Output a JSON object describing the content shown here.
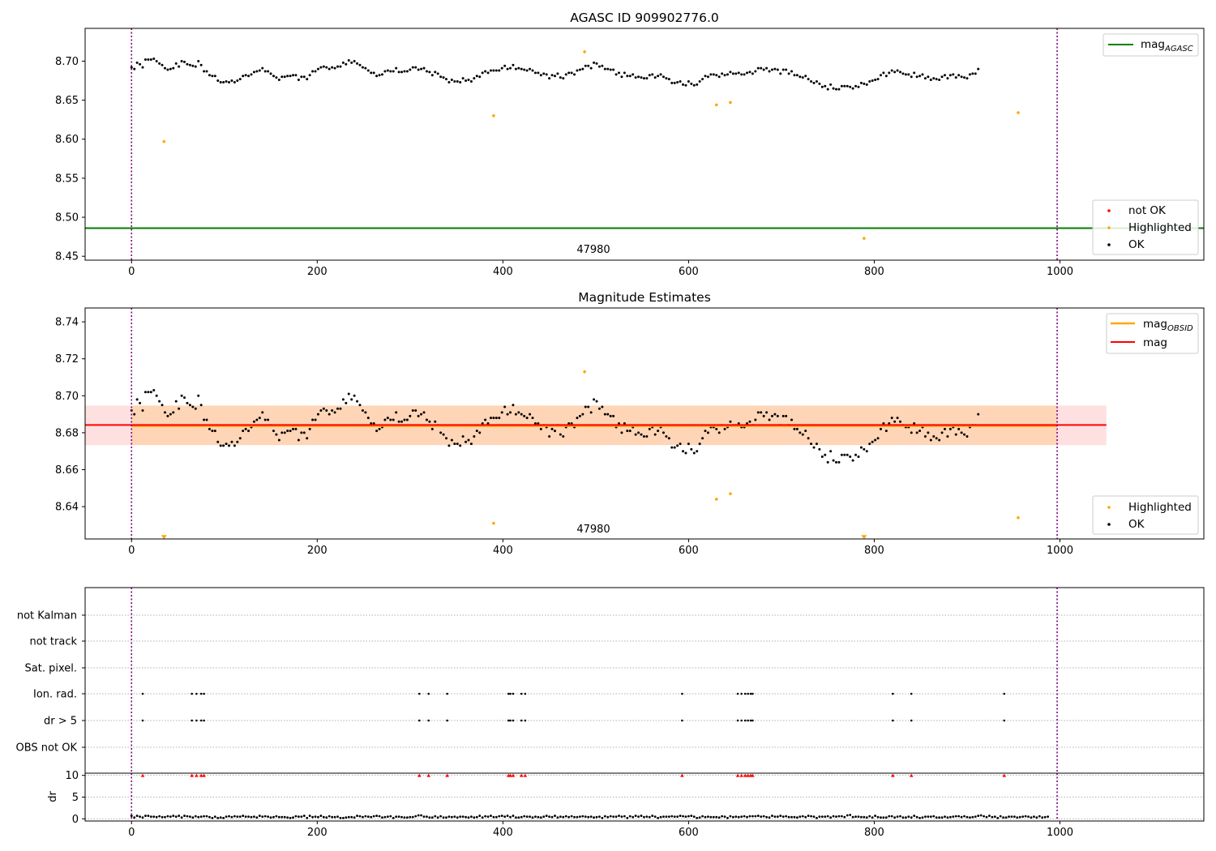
{
  "chart_data": [
    {
      "type": "scatter",
      "panel": "agasc",
      "title": "AGASC ID 909902776.0",
      "xlim": [
        -50,
        1155
      ],
      "ylim": [
        8.445,
        8.742
      ],
      "xticks": [
        0,
        200,
        400,
        600,
        800,
        1000
      ],
      "yticks": [
        8.45,
        8.5,
        8.55,
        8.6,
        8.65,
        8.7
      ],
      "obsid_label": "47980",
      "obsid_label_x": 500,
      "obs_boundaries_x": [
        0,
        997
      ],
      "lines": [
        {
          "name": "mag_AGASC",
          "legend_main": "mag",
          "legend_sub": "AGASC",
          "y": 8.486,
          "x_range": [
            -50,
            1155
          ],
          "color": "#008000"
        }
      ],
      "legends": [
        {
          "position": "upper-right",
          "entries": [
            {
              "label": "mag",
              "sub": "AGASC",
              "kind": "line",
              "color": "#008000"
            }
          ]
        },
        {
          "position": "lower-right",
          "entries": [
            {
              "label": "not OK",
              "kind": "dot",
              "color": "#ff0000"
            },
            {
              "label": "Highlighted",
              "kind": "dot",
              "color": "#ffa500"
            },
            {
              "label": "OK",
              "kind": "dot",
              "color": "#000000"
            }
          ]
        }
      ],
      "highlighted_points": [
        {
          "x": 35,
          "y": 8.597
        },
        {
          "x": 390,
          "y": 8.63
        },
        {
          "x": 488,
          "y": 8.712
        },
        {
          "x": 630,
          "y": 8.644
        },
        {
          "x": 645,
          "y": 8.647
        },
        {
          "x": 789,
          "y": 8.473
        },
        {
          "x": 955,
          "y": 8.634
        }
      ],
      "ok_series": {
        "name": "OK",
        "color": "#000000",
        "x_start": 0,
        "x_step": 3,
        "y": [
          8.692,
          8.69,
          8.698,
          8.696,
          8.692,
          8.702,
          8.702,
          8.702,
          8.703,
          8.7,
          8.697,
          8.695,
          8.691,
          8.689,
          8.69,
          8.691,
          8.697,
          8.693,
          8.7,
          8.699,
          8.696,
          8.695,
          8.694,
          8.693,
          8.7,
          8.695,
          8.687,
          8.687,
          8.682,
          8.681,
          8.681,
          8.675,
          8.673,
          8.673,
          8.674,
          8.673,
          8.675,
          8.673,
          8.675,
          8.677,
          8.681,
          8.682,
          8.681,
          8.683,
          8.686,
          8.687,
          8.688,
          8.691,
          8.687,
          8.687,
          8.684,
          8.681,
          8.679,
          8.676,
          8.68,
          8.68,
          8.681,
          8.681,
          8.682,
          8.682,
          8.676,
          8.68,
          8.68,
          8.677,
          8.682,
          8.687,
          8.687,
          8.69,
          8.692,
          8.693,
          8.692,
          8.69,
          8.692,
          8.691,
          8.693,
          8.693,
          8.698,
          8.696,
          8.701,
          8.698,
          8.7,
          8.697,
          8.695,
          8.692,
          8.691,
          8.688,
          8.685,
          8.685,
          8.681,
          8.682,
          8.683,
          8.687,
          8.688,
          8.687,
          8.687,
          8.691,
          8.686,
          8.686,
          8.687,
          8.687,
          8.689,
          8.692,
          8.692,
          8.689,
          8.69,
          8.691,
          8.687,
          8.686,
          8.682,
          8.686,
          8.684,
          8.68,
          8.679,
          8.677,
          8.673,
          8.676,
          8.674,
          8.674,
          8.673,
          8.678,
          8.675,
          8.676,
          8.674,
          8.678,
          8.681,
          8.68,
          8.685,
          8.687,
          8.685,
          8.688,
          8.688,
          8.688,
          8.688,
          8.691,
          8.694,
          8.69,
          8.691,
          8.695,
          8.69,
          8.691,
          8.69,
          8.689,
          8.688,
          8.69,
          8.688,
          8.685,
          8.685,
          8.682,
          8.684,
          8.683,
          8.678,
          8.682,
          8.681,
          8.684,
          8.679,
          8.678,
          8.683,
          8.685,
          8.685,
          8.683,
          8.688,
          8.689,
          8.69,
          8.694,
          8.694,
          8.691,
          8.698,
          8.697,
          8.693,
          8.694,
          8.69,
          8.69,
          8.689,
          8.689,
          8.683,
          8.685,
          8.68,
          8.685,
          8.681,
          8.681,
          8.683,
          8.679,
          8.68,
          8.679,
          8.678,
          8.678,
          8.682,
          8.683,
          8.679,
          8.681,
          8.683,
          8.68,
          8.678,
          8.677,
          8.672,
          8.672,
          8.673,
          8.674,
          8.67,
          8.669,
          8.674,
          8.671,
          8.669,
          8.67,
          8.674,
          8.677,
          8.681,
          8.68,
          8.683,
          8.683,
          8.682,
          8.68,
          8.684,
          8.682,
          8.683,
          8.686,
          8.684,
          8.684,
          8.685,
          8.683,
          8.683,
          8.685,
          8.686,
          8.684,
          8.687,
          8.691,
          8.691,
          8.689,
          8.691,
          8.687,
          8.689,
          8.69,
          8.689,
          8.684,
          8.689,
          8.689,
          8.684,
          8.687,
          8.682,
          8.682,
          8.68,
          8.679,
          8.681,
          8.677,
          8.674,
          8.672,
          8.674,
          8.671,
          8.667,
          8.668,
          8.664,
          8.67,
          8.665,
          8.664,
          8.664,
          8.668,
          8.668,
          8.668,
          8.667,
          8.665,
          8.668,
          8.667,
          8.672,
          8.671,
          8.67,
          8.674,
          8.675,
          8.676,
          8.677,
          8.682,
          8.685,
          8.681,
          8.685,
          8.688,
          8.686,
          8.688,
          8.686,
          8.684,
          8.683,
          8.683,
          8.68,
          8.685,
          8.68,
          8.681,
          8.683,
          8.678,
          8.68,
          8.676,
          8.678,
          8.677,
          8.676,
          8.68,
          8.682,
          8.678,
          8.682,
          8.683,
          8.679,
          8.682,
          8.68,
          8.679,
          8.678,
          8.683,
          8.684,
          8.684,
          8.69
        ]
      }
    },
    {
      "type": "scatter",
      "panel": "mag-estimates",
      "title": "Magnitude Estimates",
      "xlim": [
        -50,
        1155
      ],
      "ylim": [
        8.6225,
        8.7475
      ],
      "xticks": [
        0,
        200,
        400,
        600,
        800,
        1000
      ],
      "yticks": [
        8.64,
        8.66,
        8.68,
        8.7,
        8.72,
        8.74
      ],
      "obsid_label": "47980",
      "obsid_label_x": 500,
      "obs_boundaries_x": [
        0,
        997
      ],
      "mag_obsid": {
        "name": "mag_OBSID",
        "y": 8.6842,
        "band": [
          8.6733,
          8.6947
        ],
        "x_range": [
          0,
          997
        ],
        "color": "#ffa500"
      },
      "mag": {
        "name": "mag",
        "y": 8.6842,
        "band": [
          8.6733,
          8.6947
        ],
        "x_range": [
          -50,
          1050
        ],
        "color": "#ff0000"
      },
      "legends": [
        {
          "position": "upper-right",
          "entries": [
            {
              "label": "mag",
              "sub": "OBSID",
              "kind": "line",
              "color": "#ffa500"
            },
            {
              "label": "mag",
              "kind": "line",
              "color": "#ff0000"
            }
          ]
        },
        {
          "position": "lower-right",
          "entries": [
            {
              "label": "Highlighted",
              "kind": "dot",
              "color": "#ffa500"
            },
            {
              "label": "OK",
              "kind": "dot",
              "color": "#000000"
            }
          ]
        }
      ],
      "highlighted_points": [
        {
          "x": 390,
          "y": 8.631
        },
        {
          "x": 488,
          "y": 8.713
        },
        {
          "x": 630,
          "y": 8.644
        },
        {
          "x": 645,
          "y": 8.647
        },
        {
          "x": 955,
          "y": 8.634
        }
      ],
      "clipped_markers": [
        {
          "x": 35,
          "y": 8.6235
        },
        {
          "x": 789,
          "y": 8.6235
        }
      ],
      "ok_series_ref": "agasc"
    },
    {
      "type": "scatter",
      "panel": "flags",
      "xlim": [
        -50,
        1155
      ],
      "xticks": [
        0,
        200,
        400,
        600,
        800,
        1000
      ],
      "obs_boundaries_x": [
        0,
        997
      ],
      "categories": [
        "not Kalman",
        "not track",
        "Sat. pixel.",
        "Ion. rad.",
        "dr > 5",
        "OBS not OK"
      ],
      "flag_x": [
        12,
        65,
        70,
        75,
        78,
        310,
        320,
        340,
        406,
        408,
        411,
        420,
        424,
        593,
        653,
        657,
        661,
        664,
        667,
        669,
        820,
        840,
        940
      ],
      "flagged_rows": [
        "Ion. rad.",
        "dr > 5"
      ]
    },
    {
      "type": "scatter",
      "panel": "dr",
      "ylabel": "dr",
      "xlim": [
        -50,
        1155
      ],
      "ylim": [
        -0.5,
        10.5
      ],
      "yticks": [
        0,
        5,
        10
      ],
      "xticks": [
        0,
        200,
        400,
        600,
        800,
        1000
      ],
      "obs_boundaries_x": [
        0,
        997
      ],
      "capped_value": 10,
      "capped_x": [
        12,
        65,
        70,
        75,
        78,
        310,
        320,
        340,
        406,
        408,
        411,
        420,
        424,
        593,
        653,
        657,
        661,
        664,
        667,
        669,
        820,
        840,
        940
      ],
      "dr_series": {
        "x_start": 0,
        "x_step": 3,
        "y": [
          0.7,
          0.3,
          0.7,
          0.5,
          0.3,
          0.7,
          0.7,
          0.5,
          0.5,
          0.4,
          0.6,
          0.4,
          0.4,
          0.6,
          0.5,
          0.7,
          0.5,
          0.7,
          0.3,
          0.7,
          0.6,
          0.5,
          0.3,
          0.6,
          0.4,
          0.5,
          0.6,
          0.6,
          0.4,
          0.2,
          0.5,
          0.2,
          0.3,
          0.2,
          0.5,
          0.6,
          0.4,
          0.6,
          0.5,
          0.5,
          0.7,
          0.5,
          0.5,
          0.4,
          0.5,
          0.3,
          0.7,
          0.5,
          0.6,
          0.5,
          0.3,
          0.4,
          0.6,
          0.4,
          0.4,
          0.4,
          0.3,
          0.2,
          0.3,
          0.6,
          0.5,
          0.5,
          0.7,
          0.2,
          0.7,
          0.4,
          0.5,
          0.4,
          0.7,
          0.4,
          0.3,
          0.6,
          0.4,
          0.4,
          0.5,
          0.2,
          0.2,
          0.3,
          0.4,
          0.4,
          0.3,
          0.7,
          0.6,
          0.4,
          0.6,
          0.5,
          0.4,
          0.6,
          0.7,
          0.6,
          0.3,
          0.4,
          0.5,
          0.6,
          0.2,
          0.5,
          0.5,
          0.4,
          0.3,
          0.3,
          0.4,
          0.4,
          0.6,
          0.8,
          0.8,
          0.5,
          0.5,
          0.3,
          0.3,
          0.6,
          0.3,
          0.6,
          0.3,
          0.3,
          0.5,
          0.4,
          0.5,
          0.3,
          0.5,
          0.5,
          0.4,
          0.3,
          0.5,
          0.3,
          0.4,
          0.7,
          0.3,
          0.6,
          0.5,
          0.7,
          0.4,
          0.4,
          0.6,
          0.7,
          0.5,
          0.7,
          0.4,
          0.7,
          0.3,
          0.3,
          0.4,
          0.6,
          0.5,
          0.5,
          0.3,
          0.5,
          0.4,
          0.3,
          0.5,
          0.7,
          0.5,
          0.4,
          0.7,
          0.3,
          0.5,
          0.4,
          0.6,
          0.4,
          0.6,
          0.4,
          0.4,
          0.5,
          0.6,
          0.5,
          0.4,
          0.5,
          0.3,
          0.4,
          0.5,
          0.2,
          0.6,
          0.4,
          0.6,
          0.5,
          0.5,
          0.7,
          0.5,
          0.6,
          0.2,
          0.6,
          0.4,
          0.7,
          0.5,
          0.7,
          0.4,
          0.5,
          0.4,
          0.7,
          0.5,
          0.2,
          0.4,
          0.5,
          0.5,
          0.5,
          0.6,
          0.5,
          0.5,
          0.7,
          0.6,
          0.5,
          0.6,
          0.7,
          0.5,
          0.2,
          0.3,
          0.6,
          0.4,
          0.5,
          0.4,
          0.4,
          0.4,
          0.3,
          0.6,
          0.5,
          0.2,
          0.6,
          0.4,
          0.5,
          0.4,
          0.5,
          0.6,
          0.4,
          0.6,
          0.6,
          0.6,
          0.7,
          0.5,
          0.6,
          0.4,
          0.3,
          0.7,
          0.5,
          0.5,
          0.7,
          0.5,
          0.6,
          0.4,
          0.4,
          0.4,
          0.3,
          0.5,
          0.6,
          0.4,
          0.7,
          0.6,
          0.5,
          0.2,
          0.5,
          0.5,
          0.5,
          0.6,
          0.3,
          0.6,
          0.5,
          0.6,
          0.6,
          0.4,
          0.8,
          0.9,
          0.4,
          0.5,
          0.5,
          0.4,
          0.4,
          0.3,
          0.6,
          0.3,
          0.7,
          0.4,
          0.3,
          0.3,
          0.3,
          0.6,
          0.6,
          0.3,
          0.5,
          0.6,
          0.3,
          0.3,
          0.5,
          0.3,
          0.7,
          0.4,
          0.2,
          0.3,
          0.5,
          0.5,
          0.5,
          0.6,
          0.3,
          0.3,
          0.3,
          0.5,
          0.3,
          0.4,
          0.5,
          0.6,
          0.6,
          0.4,
          0.6,
          0.4,
          0.3,
          0.4,
          0.5,
          0.7,
          0.8,
          0.6,
          0.4,
          0.7,
          0.4,
          0.5,
          0.2,
          0.6,
          0.3,
          0.3,
          0.5,
          0.5,
          0.5,
          0.3,
          0.4,
          0.5,
          0.6,
          0.5,
          0.3,
          0.5,
          0.3,
          0.6,
          0.3,
          0.4,
          0.5
        ]
      }
    }
  ]
}
